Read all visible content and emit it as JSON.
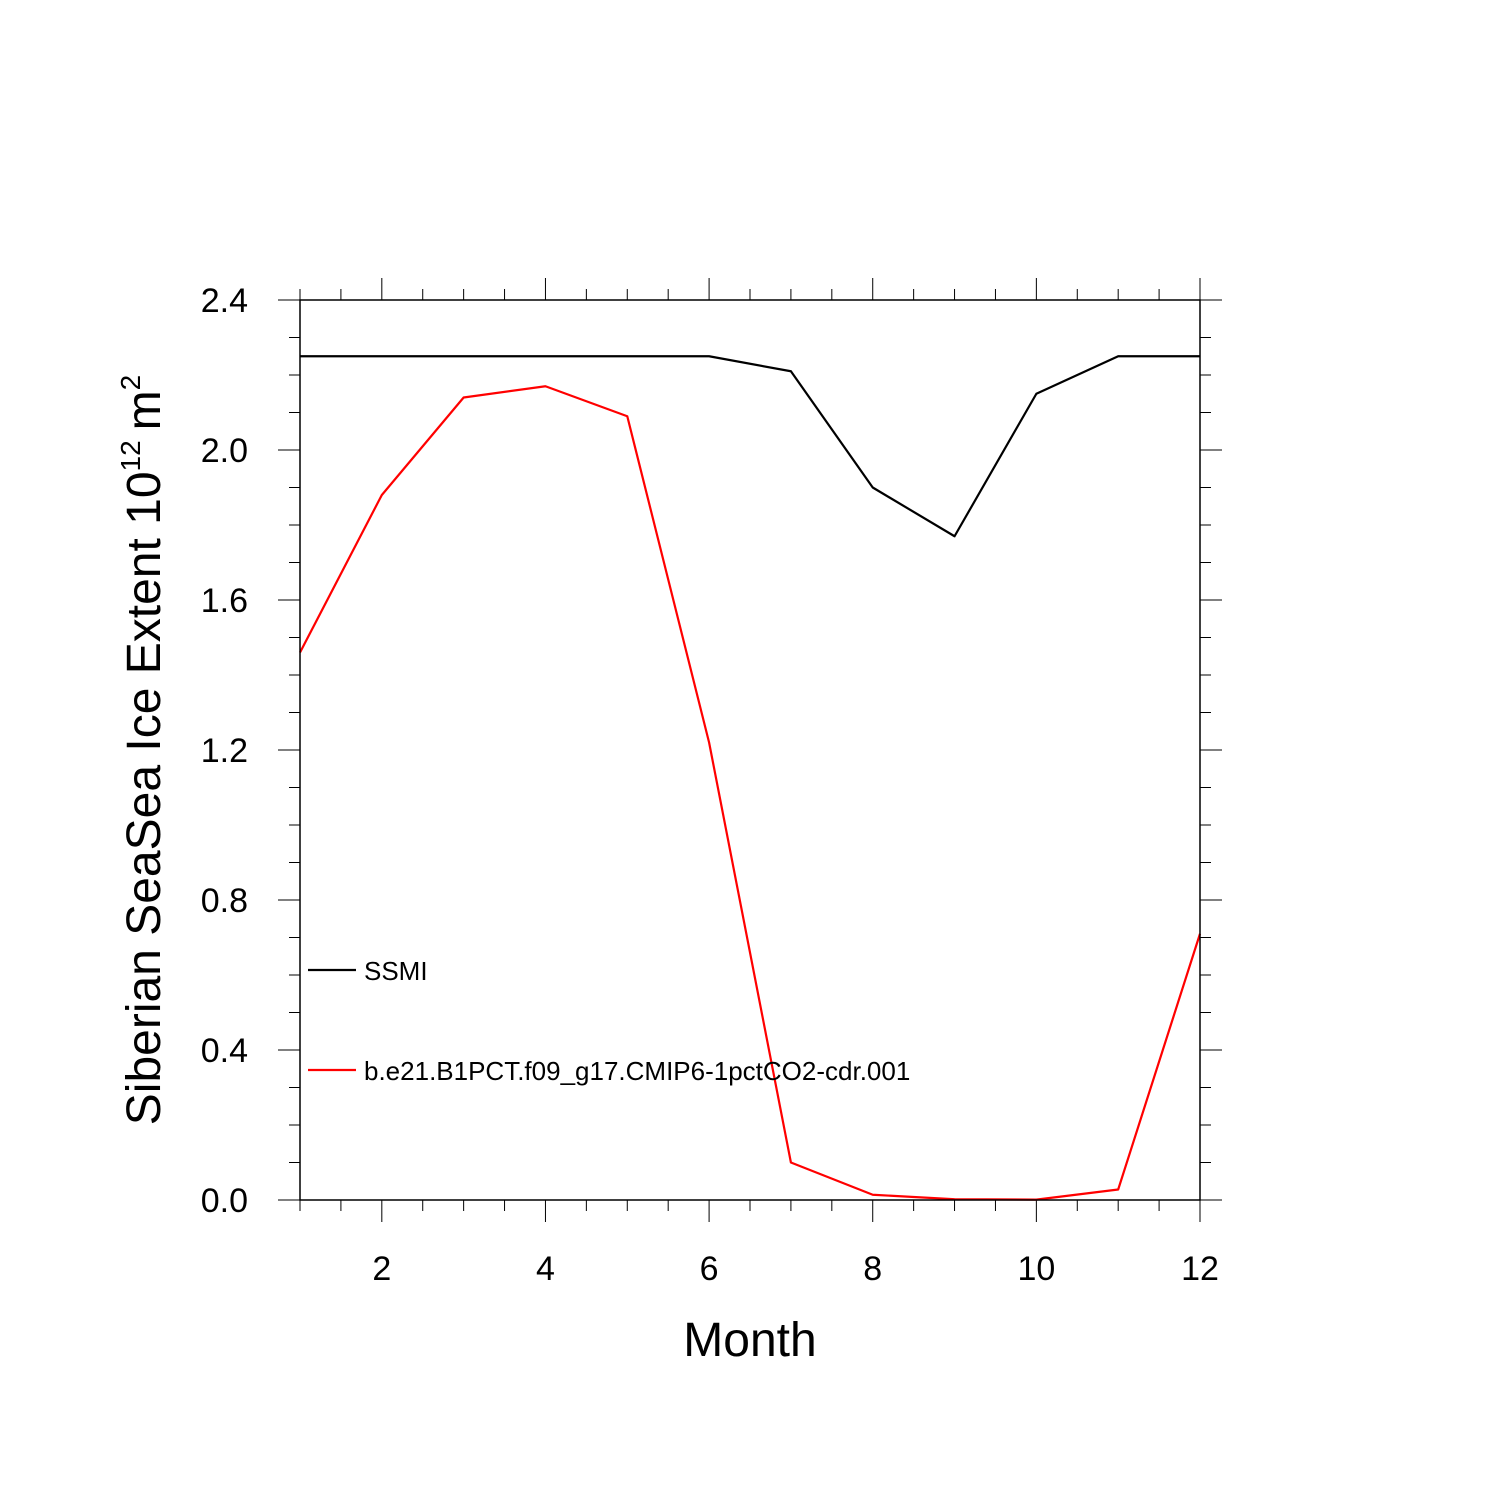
{
  "chart_data": {
    "type": "line",
    "xlabel": "Month",
    "ylabel": {
      "text": "Siberian SeaSea Ice Extent 10",
      "exponent": "12",
      "unit": "m",
      "unit_exponent": "2"
    },
    "xlim": [
      1,
      12
    ],
    "ylim": [
      0,
      2.4
    ],
    "xticks": [
      2,
      4,
      6,
      8,
      10,
      12
    ],
    "yticks": [
      0.0,
      0.4,
      0.8,
      1.2,
      1.6,
      2.0,
      2.4
    ],
    "ytick_labels": [
      "0.0",
      "0.4",
      "0.8",
      "1.2",
      "1.6",
      "2.0",
      "2.4"
    ],
    "grid": false,
    "legend_position": "left-lower",
    "x": [
      1,
      2,
      3,
      4,
      5,
      6,
      7,
      8,
      9,
      10,
      11,
      12
    ],
    "series": [
      {
        "name": "SSMI",
        "color": "#000000",
        "values": [
          2.25,
          2.25,
          2.25,
          2.25,
          2.25,
          2.25,
          2.21,
          1.9,
          1.77,
          2.15,
          2.25,
          2.25
        ]
      },
      {
        "name": "b.e21.B1PCT.f09_g17.CMIP6-1pctCO2-cdr.001",
        "color": "#ff0000",
        "values": [
          1.46,
          1.88,
          2.14,
          2.17,
          2.09,
          1.22,
          0.1,
          0.014,
          0.002,
          0.001,
          0.028,
          0.71
        ]
      }
    ]
  }
}
